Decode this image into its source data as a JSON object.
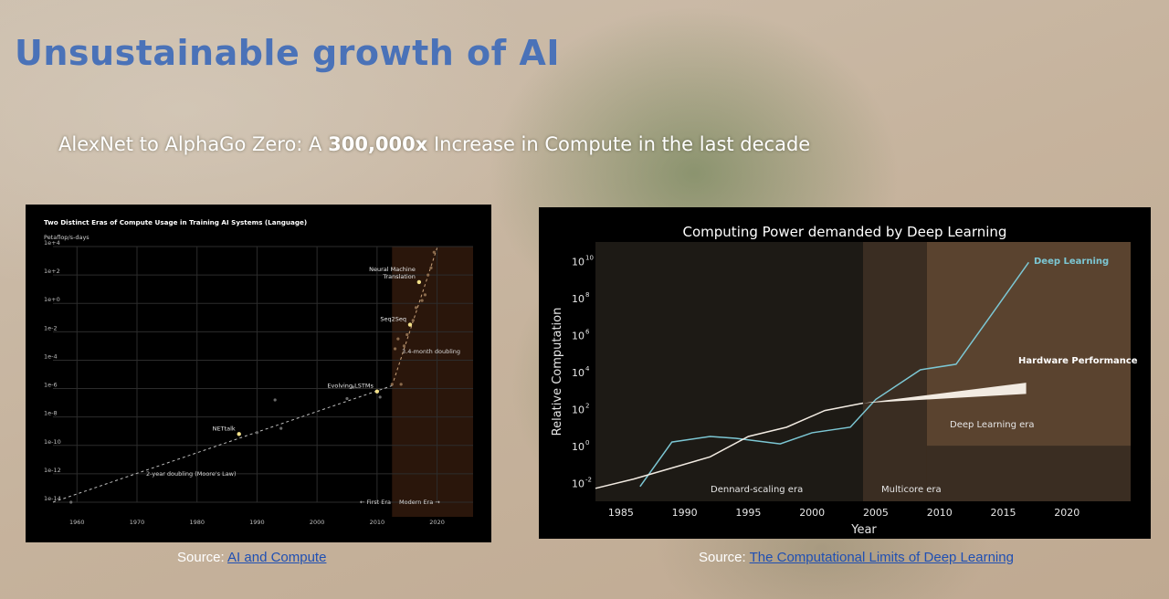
{
  "slide": {
    "title": "Unsustainable growth of AI",
    "subtitle_pre": "AlexNet to AlphaGo Zero:  A ",
    "subtitle_bold": "300,000x",
    "subtitle_post": " Increase in Compute in the last decade"
  },
  "sources": {
    "left_prefix": "Source: ",
    "left_link": "AI  and Compute",
    "right_prefix": "Source: ",
    "right_link": "The Computational Limits of Deep Learning"
  },
  "chart_data": [
    {
      "type": "scatter",
      "title": "Two Distinct Eras of Compute Usage in Training AI Systems (Language)",
      "ylabel": "Petaflop/s-days",
      "yscale": "log10",
      "xlim": [
        1956,
        2026
      ],
      "ylim_exp": [
        -14,
        4
      ],
      "x_ticks": [
        "1960",
        "1970",
        "1980",
        "1990",
        "2000",
        "2010",
        "2020"
      ],
      "y_ticks": [
        "1e+4",
        "1e+2",
        "1e+0",
        "1e-2",
        "1e-4",
        "1e-6",
        "1e-8",
        "1e-10",
        "1e-12",
        "1e-14"
      ],
      "eras": [
        "← First Era",
        "Modern Era →"
      ],
      "trend_labels": [
        "2-year doubling (Moore's Law)",
        "3.4-month doubling"
      ],
      "points": [
        {
          "x": 1959,
          "y": -14,
          "label": ""
        },
        {
          "x": 1987,
          "y": -9.2,
          "label": "NETtalk",
          "highlight": true
        },
        {
          "x": 1990,
          "y": -9.1,
          "label": ""
        },
        {
          "x": 1993,
          "y": -6.8,
          "label": ""
        },
        {
          "x": 1994,
          "y": -8.8,
          "label": ""
        },
        {
          "x": 2005,
          "y": -6.7,
          "label": ""
        },
        {
          "x": 2006,
          "y": -5.9,
          "label": ""
        },
        {
          "x": 2010,
          "y": -6.2,
          "label": "Evolving LSTMs",
          "highlight": true
        },
        {
          "x": 2010.5,
          "y": -6.6,
          "label": ""
        },
        {
          "x": 2012.5,
          "y": -5.7,
          "label": ""
        },
        {
          "x": 2013,
          "y": -3.2,
          "label": ""
        },
        {
          "x": 2013.5,
          "y": -2.5,
          "label": ""
        },
        {
          "x": 2014,
          "y": -5.7,
          "label": ""
        },
        {
          "x": 2014.5,
          "y": -3.0,
          "label": ""
        },
        {
          "x": 2015,
          "y": -2.2,
          "label": ""
        },
        {
          "x": 2015.5,
          "y": -1.5,
          "label": "Seq2Seq",
          "highlight": true
        },
        {
          "x": 2016,
          "y": -1.2,
          "label": ""
        },
        {
          "x": 2016.5,
          "y": -0.3,
          "label": ""
        },
        {
          "x": 2017,
          "y": 1.5,
          "label": "Neural Machine\nTranslation",
          "highlight": true
        },
        {
          "x": 2017.5,
          "y": 0.2,
          "label": ""
        },
        {
          "x": 2018,
          "y": 0.6,
          "label": ""
        },
        {
          "x": 2018.5,
          "y": 2.0,
          "label": ""
        },
        {
          "x": 2019,
          "y": 2.5,
          "label": ""
        },
        {
          "x": 2019.5,
          "y": 3.6,
          "label": ""
        }
      ],
      "trend_moore": [
        [
          1956,
          -14
        ],
        [
          2012.5,
          -5.8
        ]
      ],
      "trend_modern": [
        [
          2012.5,
          -5.8
        ],
        [
          2020,
          3.9
        ]
      ]
    },
    {
      "type": "line",
      "title": "Computing Power demanded by Deep Learning",
      "xlabel": "Year",
      "ylabel": "Relative Computation",
      "yscale": "log10",
      "xlim": [
        1983,
        2025
      ],
      "ylim_exp": [
        -3,
        11
      ],
      "x_ticks": [
        1985,
        1990,
        1995,
        2000,
        2005,
        2010,
        2015,
        2020
      ],
      "y_tick_exps": [
        10,
        8,
        6,
        4,
        2,
        0,
        -2
      ],
      "eras": [
        {
          "name": "Dennard-scaling era",
          "x0": 1983,
          "x1": 2004,
          "color": "#1d1a15"
        },
        {
          "name": "Multicore era",
          "x0": 2004,
          "x1": 2009,
          "color": "#3a2d22"
        },
        {
          "name": "Deep Learning era",
          "x0": 2009,
          "x1": 2025,
          "color": "#5a432f"
        }
      ],
      "series": [
        {
          "name": "Deep Learning",
          "color": "#7cc7d4",
          "x": [
            1986.5,
            1989,
            1992,
            1994,
            1997.5,
            2000,
            2003,
            2005,
            2008.5,
            2011.3,
            2014,
            2017
          ],
          "y_exp": [
            -2.2,
            0.2,
            0.5,
            0.4,
            0.1,
            0.7,
            1.0,
            2.5,
            4.1,
            4.4,
            7.0,
            9.9
          ]
        },
        {
          "name": "",
          "color": "#f2ebe2",
          "x": [
            1983,
            1986,
            1989,
            1992,
            1995,
            1998,
            2001,
            2004
          ],
          "y_exp": [
            -2.3,
            -1.8,
            -1.2,
            -0.6,
            0.5,
            1.0,
            1.9,
            2.3
          ]
        },
        {
          "name": "Hardware Performance",
          "color": "#f2ebe2",
          "band": true,
          "x": [
            2004,
            2016.8
          ],
          "lo_exp": [
            2.3,
            2.8
          ],
          "hi_exp": [
            2.3,
            3.4
          ]
        }
      ]
    }
  ]
}
